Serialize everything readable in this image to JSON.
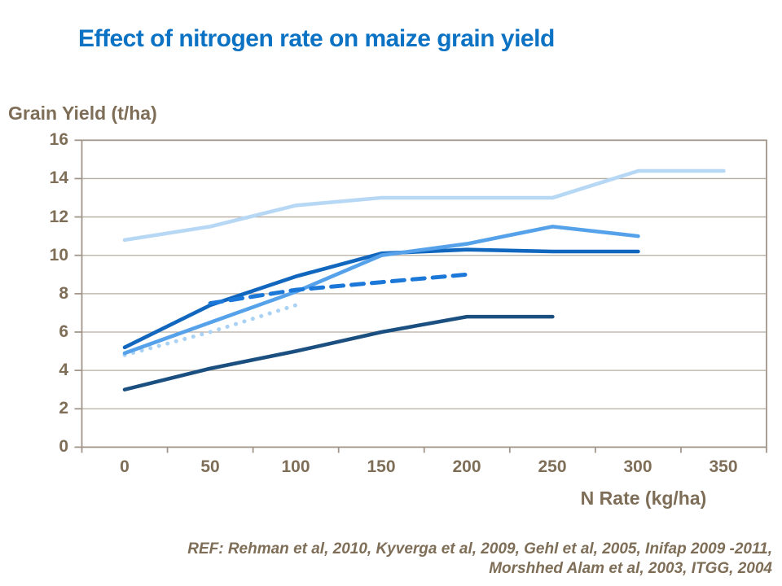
{
  "chart_data": {
    "type": "line",
    "title": "Effect of nitrogen rate on maize grain yield",
    "ylabel": "Grain Yield (t/ha)",
    "xlabel": "N Rate (kg/ha)",
    "categories": [
      0,
      50,
      100,
      150,
      200,
      250,
      300,
      350
    ],
    "x_tick_labels": [
      "0",
      "50",
      "100",
      "150",
      "200",
      "250",
      "300",
      "350"
    ],
    "y_tick_labels": [
      "16",
      "14",
      "12",
      "10",
      "8",
      "6",
      "4",
      "2",
      "0"
    ],
    "ylim": [
      0,
      16
    ],
    "y_tick_step": 2,
    "grid": "horizontal",
    "legend_position": "none",
    "series": [
      {
        "name": "light-blue-solid",
        "color": "#B7D8F5",
        "style": "solid",
        "values": [
          10.8,
          11.5,
          12.6,
          13.0,
          13.0,
          13.0,
          14.4,
          14.4
        ]
      },
      {
        "name": "pale-blue-dotted",
        "color": "#A9D2F4",
        "style": "dotted",
        "values": [
          4.8,
          6.0,
          7.4,
          null,
          null,
          null,
          null,
          null
        ]
      },
      {
        "name": "navy-solid",
        "color": "#1A4F80",
        "style": "solid",
        "values": [
          3.0,
          4.1,
          5.0,
          6.0,
          6.8,
          6.8,
          null,
          null
        ]
      },
      {
        "name": "dark-blue-solid",
        "color": "#1166BE",
        "style": "solid",
        "values": [
          5.2,
          7.4,
          8.9,
          10.1,
          10.3,
          10.2,
          10.2,
          null
        ]
      },
      {
        "name": "medium-blue-solid",
        "color": "#55A2EA",
        "style": "solid",
        "values": [
          4.9,
          6.5,
          8.1,
          10.0,
          10.6,
          11.5,
          11.0,
          null
        ]
      },
      {
        "name": "bright-blue-dashed",
        "color": "#1B78D8",
        "style": "dashed",
        "values": [
          null,
          7.5,
          8.2,
          8.6,
          9.0,
          null,
          null,
          null
        ]
      }
    ]
  },
  "footer": {
    "ref_line1": "REF: Rehman et al, 2010, Kyverga et al, 2009, Gehl et al, 2005, Inifap 2009 -2011,",
    "ref_line2": "Morshhed Alam et al, 2003, ITGG, 2004"
  },
  "colors": {
    "title_blue": "#0B72C4",
    "axis_text_tan": "#7E6E57",
    "plot_border": "#A2968A",
    "gridline": "#B6ADA1",
    "background": "#FFFFFF"
  }
}
